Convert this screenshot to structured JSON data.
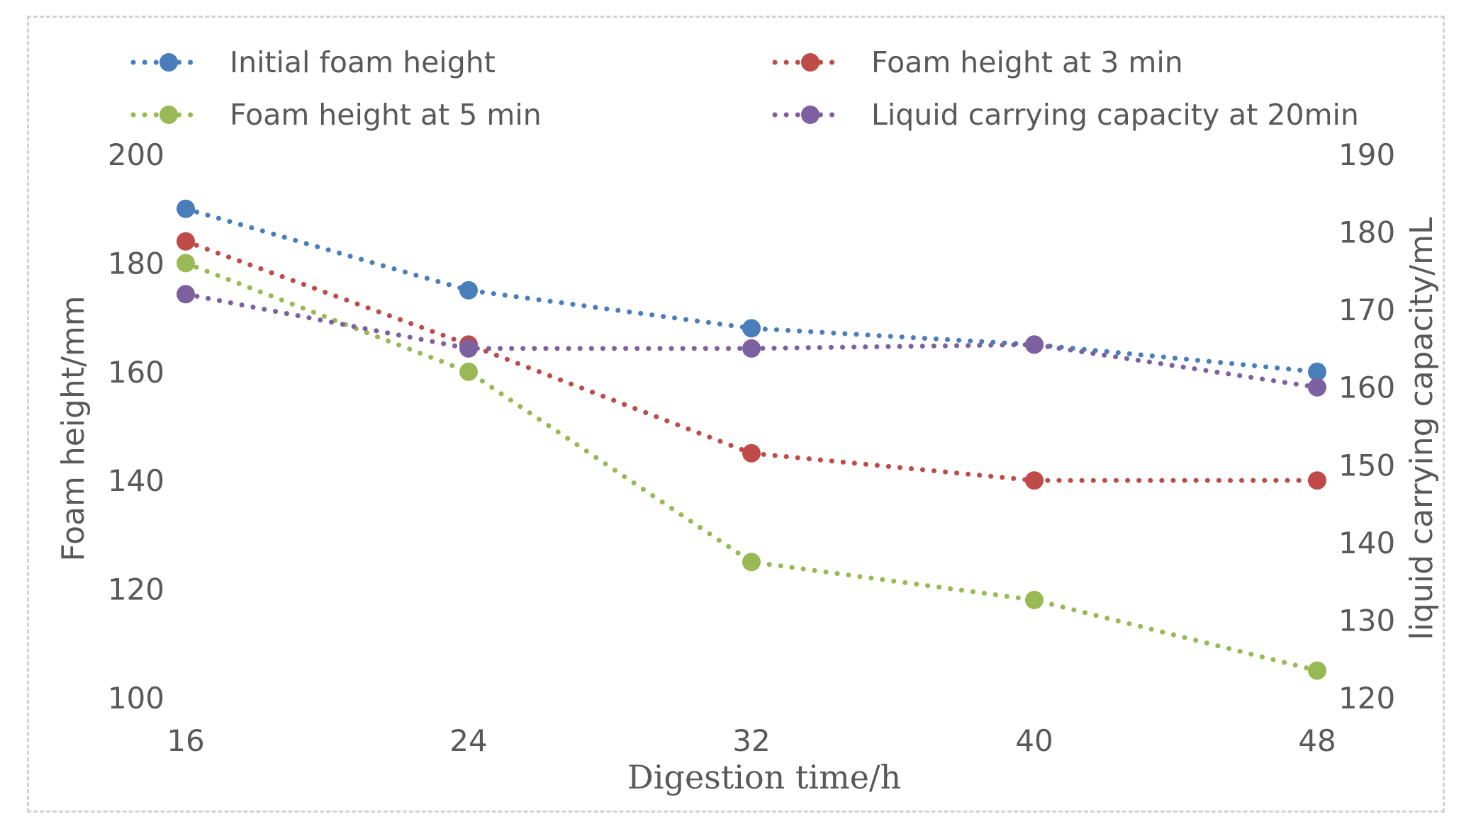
{
  "chart_data": {
    "type": "line",
    "title": "",
    "xlabel": "Digestion time/h",
    "ylabel": "Foam height/mm",
    "y2label": "liquid carrying capacity/mL",
    "categories": [
      "16",
      "24",
      "32",
      "40",
      "48"
    ],
    "x": [
      16,
      24,
      32,
      40,
      48
    ],
    "ylim": [
      100,
      200
    ],
    "y2lim": [
      120,
      190
    ],
    "yticks": [
      "100",
      "120",
      "140",
      "160",
      "180",
      "200"
    ],
    "y2ticks": [
      "120",
      "130",
      "140",
      "150",
      "160",
      "170",
      "180",
      "190"
    ],
    "legend_position": "top",
    "series": [
      {
        "name": "Initial foam height",
        "axis": "left",
        "color": "#4a7ebb",
        "values": [
          190,
          175,
          168,
          165,
          160
        ]
      },
      {
        "name": "Foam height at 3 min",
        "axis": "left",
        "color": "#be4b48",
        "values": [
          184,
          165,
          145,
          140,
          140
        ]
      },
      {
        "name": "Foam height at 5 min",
        "axis": "left",
        "color": "#98b954",
        "values": [
          180,
          160,
          125,
          118,
          105
        ]
      },
      {
        "name": "Liquid carrying capacity at 20min",
        "axis": "right",
        "color": "#7d60a0",
        "values": [
          172,
          165,
          165,
          165.5,
          160
        ]
      }
    ]
  }
}
